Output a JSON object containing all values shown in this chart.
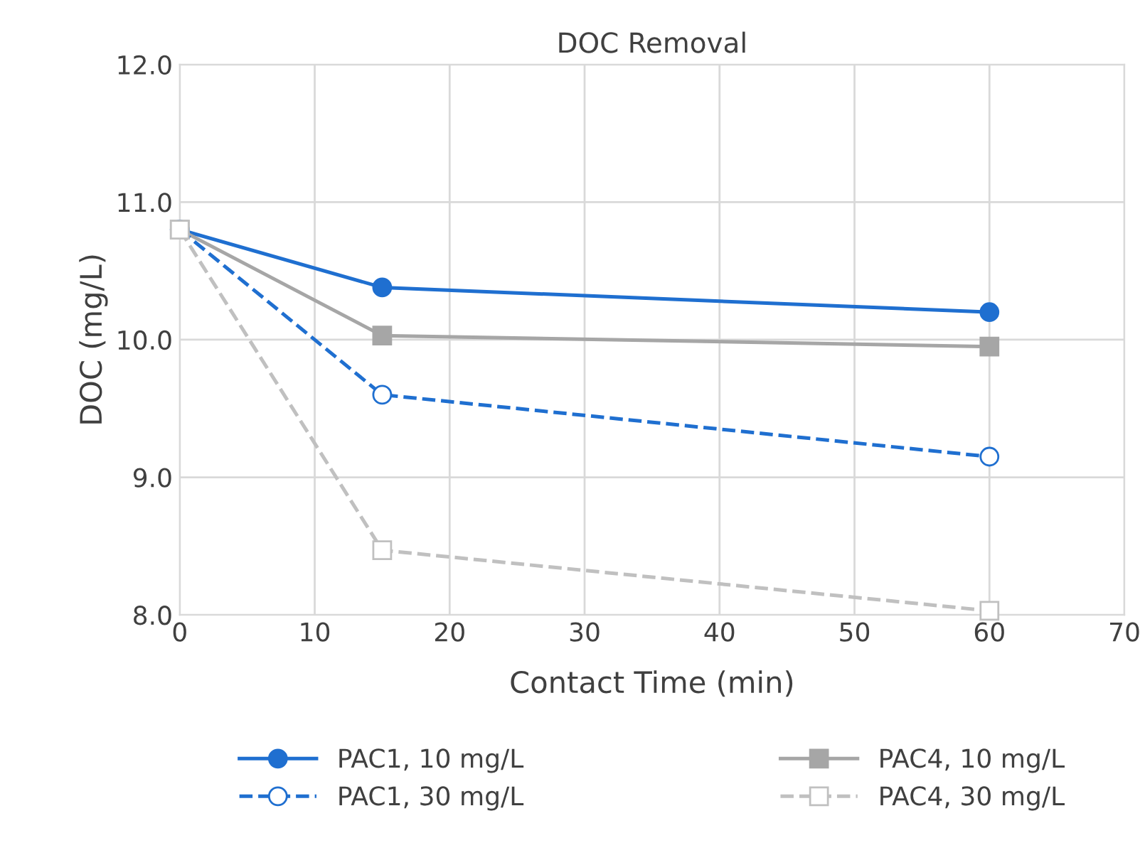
{
  "chart_data": {
    "type": "line",
    "title": "DOC Removal",
    "xlabel": "Contact Time (min)",
    "ylabel": "DOC (mg/L)",
    "x": [
      0,
      15,
      60
    ],
    "series": [
      {
        "name": "PAC1, 10 mg/L",
        "color": "#1f6fd0",
        "values": [
          10.8,
          10.38,
          10.2
        ],
        "marker": "circle",
        "line_style": "solid"
      },
      {
        "name": "PAC4, 10 mg/L",
        "color": "#a6a6a6",
        "values": [
          10.8,
          10.03,
          9.95
        ],
        "marker": "square",
        "line_style": "solid"
      },
      {
        "name": "PAC1, 30 mg/L",
        "color": "#1f6fd0",
        "values": [
          10.8,
          9.6,
          9.15
        ],
        "marker": "circle",
        "line_style": "dashed"
      },
      {
        "name": "PAC4, 30 mg/L",
        "color": "#c0c0c0",
        "values": [
          10.8,
          8.47,
          8.03
        ],
        "marker": "square",
        "line_style": "dashed"
      }
    ],
    "xlim": [
      0,
      70
    ],
    "xticks": [
      0,
      10,
      20,
      30,
      40,
      50,
      60,
      70
    ],
    "ylim": [
      8.0,
      12.0
    ],
    "yticks": [
      {
        "value": 8,
        "label": "8.0"
      },
      {
        "value": 9,
        "label": "9.0"
      },
      {
        "value": 10,
        "label": "10.0"
      },
      {
        "value": 11,
        "label": "11.0"
      },
      {
        "value": 12,
        "label": "12.0"
      }
    ],
    "grid": true,
    "legend": "bottom"
  }
}
